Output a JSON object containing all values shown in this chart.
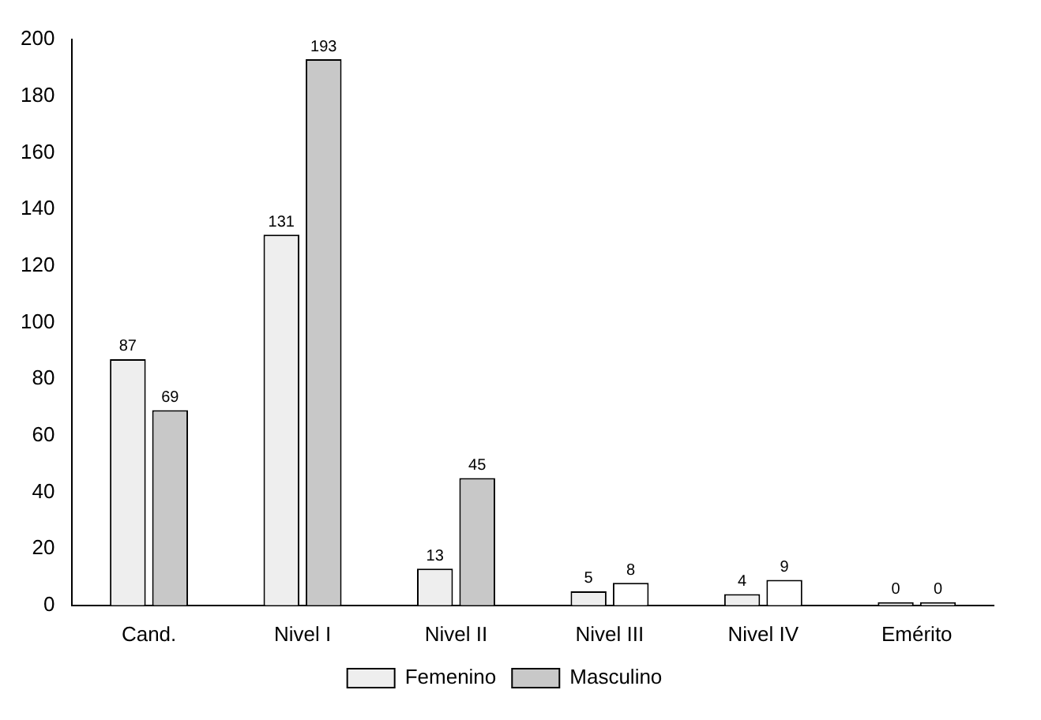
{
  "chart_data": {
    "type": "bar",
    "categories": [
      "Cand.",
      "Nivel I",
      "Nivel II",
      "Nivel III",
      "Nivel IV",
      "Emérito"
    ],
    "series": [
      {
        "name": "Femenino",
        "color": "#eeeeee",
        "values": [
          87,
          131,
          13,
          5,
          4,
          0
        ]
      },
      {
        "name": "Masculino",
        "color": "#c8c8c8",
        "colors": [
          "#c8c8c8",
          "#c8c8c8",
          "#c8c8c8",
          "#ffffff",
          "#ffffff",
          "#ffffff"
        ],
        "values": [
          69,
          193,
          45,
          8,
          9,
          0
        ]
      }
    ],
    "ylim": [
      0,
      200
    ],
    "yticks": [
      0,
      20,
      40,
      60,
      80,
      100,
      120,
      140,
      160,
      180,
      200
    ],
    "grid": false,
    "legend": "bottom",
    "data_labels": true
  }
}
